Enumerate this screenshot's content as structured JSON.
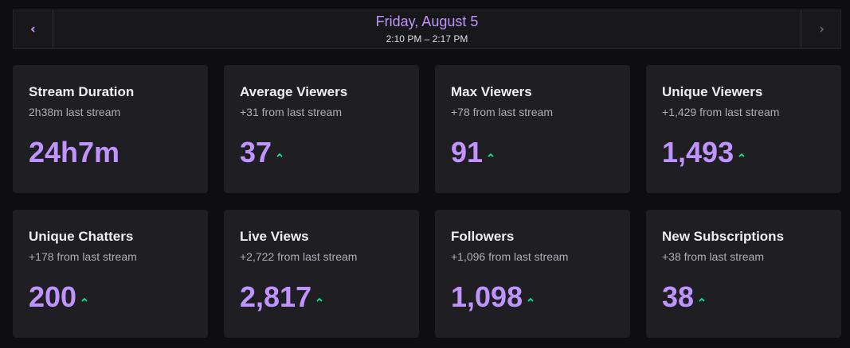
{
  "header": {
    "title": "Friday, August 5",
    "subtitle": "2:10 PM – 2:17 PM"
  },
  "cards": [
    {
      "title": "Stream Duration",
      "subtitle": "2h38m last stream",
      "value": "24h7m"
    },
    {
      "title": "Average Viewers",
      "subtitle": "+31 from last stream",
      "value": "37"
    },
    {
      "title": "Max Viewers",
      "subtitle": "+78 from last stream",
      "value": "91"
    },
    {
      "title": "Unique Viewers",
      "subtitle": "+1,429 from last stream",
      "value": "1,493"
    },
    {
      "title": "Unique Chatters",
      "subtitle": "+178 from last stream",
      "value": "200"
    },
    {
      "title": "Live Views",
      "subtitle": "+2,722 from last stream",
      "value": "2,817"
    },
    {
      "title": "Followers",
      "subtitle": "+1,096 from last stream",
      "value": "1,098"
    },
    {
      "title": "New Subscriptions",
      "subtitle": "+38 from last stream",
      "value": "38"
    }
  ]
}
